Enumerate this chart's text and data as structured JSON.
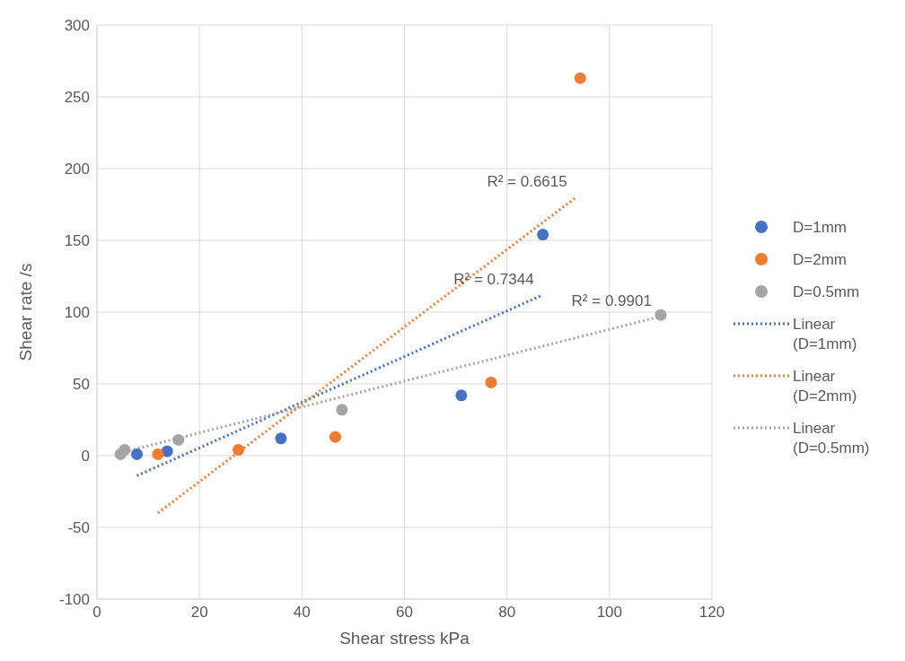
{
  "chart_data": {
    "type": "scatter",
    "xlabel": "Shear stress kPa",
    "ylabel": "Shear rate /s",
    "xlim": [
      0,
      120
    ],
    "xticks": [
      0,
      20,
      40,
      60,
      80,
      100,
      120
    ],
    "ylim": [
      -100,
      300
    ],
    "yticks": [
      -100,
      -50,
      0,
      50,
      100,
      150,
      200,
      250,
      300
    ],
    "grid": true,
    "legend": "right",
    "series": [
      {
        "name": "D=1mm",
        "type": "scatter",
        "marker": "circle",
        "color": "#4472c4",
        "x": [
          7.8,
          13.7,
          35.9,
          71.1,
          87
        ],
        "values": [
          1,
          3,
          12,
          42,
          154
        ]
      },
      {
        "name": "D=2mm",
        "type": "scatter",
        "marker": "circle",
        "color": "#ed7d31",
        "x": [
          11.9,
          27.6,
          46.5,
          76.9,
          94.3
        ],
        "values": [
          1,
          4,
          13,
          51,
          263
        ]
      },
      {
        "name": "D=0.5mm",
        "type": "scatter",
        "marker": "circle",
        "color": "#a5a5a5",
        "x": [
          4.6,
          5.4,
          15.9,
          47.8,
          110
        ],
        "values": [
          1,
          4,
          11,
          32,
          98
        ]
      },
      {
        "name": "Linear (D=1mm)",
        "type": "line",
        "marker": "none",
        "line_style": "dotted",
        "color": "#4472c4",
        "x": [
          7.8,
          87
        ],
        "values": [
          -14,
          112
        ]
      },
      {
        "name": "Linear (D=2mm)",
        "type": "line",
        "marker": "none",
        "line_style": "dotted",
        "color": "#ed7d31",
        "x": [
          11.9,
          93.5
        ],
        "values": [
          -40,
          180
        ]
      },
      {
        "name": "Linear (D=0.5mm)",
        "type": "line",
        "marker": "none",
        "line_style": "dotted",
        "color": "#a5a5a5",
        "x": [
          4.6,
          110
        ],
        "values": [
          2,
          97
        ]
      }
    ],
    "annotations": [
      "R² = 0.7344",
      "R² = 0.6615",
      "R² = 0.9901"
    ]
  }
}
